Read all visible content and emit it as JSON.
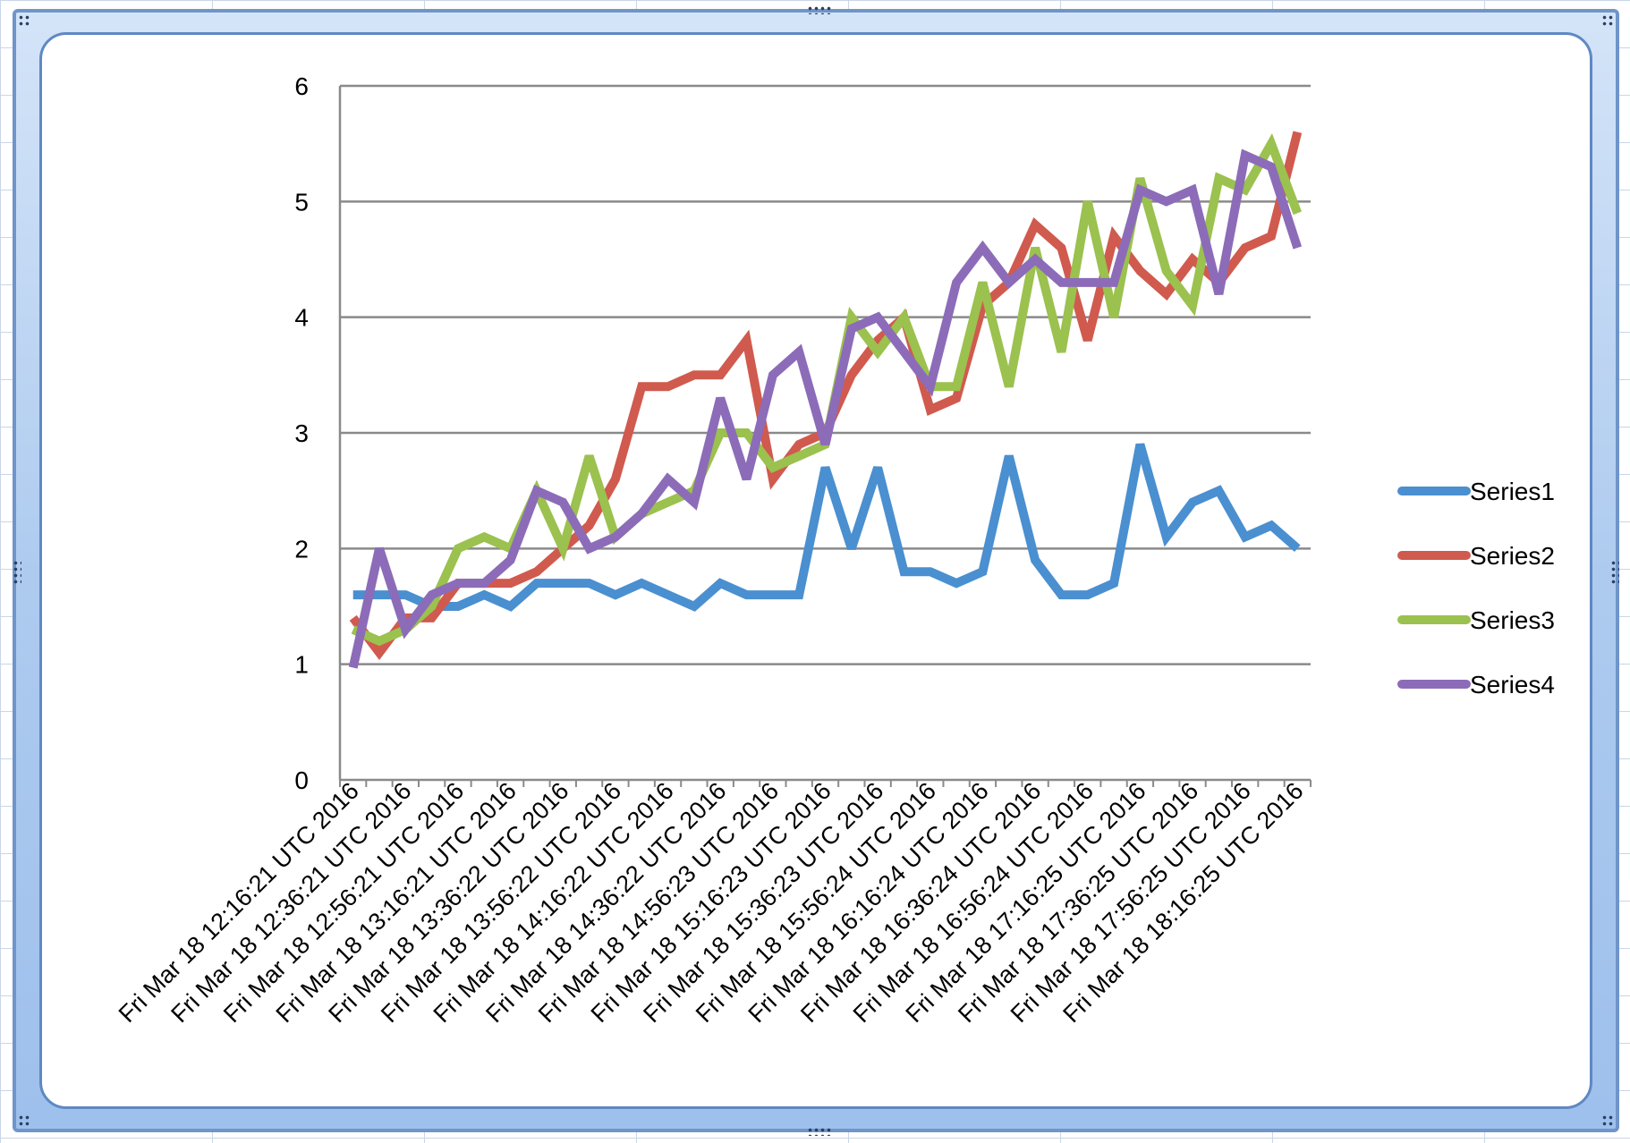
{
  "chart_data": {
    "type": "line",
    "title": "",
    "xlabel": "",
    "ylabel": "",
    "ylim": [
      0,
      6
    ],
    "y_ticks": [
      "0",
      "1",
      "2",
      "3",
      "4",
      "5",
      "6"
    ],
    "grid": "horizontal",
    "legend_position": "right",
    "x_tick_labels": [
      "Fri Mar 18 12:16:21 UTC 2016",
      "Fri Mar 18 12:36:21 UTC 2016",
      "Fri Mar 18 12:56:21 UTC 2016",
      "Fri Mar 18 13:16:21 UTC 2016",
      "Fri Mar 18 13:36:22 UTC 2016",
      "Fri Mar 18 13:56:22 UTC 2016",
      "Fri Mar 18 14:16:22 UTC 2016",
      "Fri Mar 18 14:36:22 UTC 2016",
      "Fri Mar 18 14:56:23 UTC 2016",
      "Fri Mar 18 15:16:23 UTC 2016",
      "Fri Mar 18 15:36:23 UTC 2016",
      "Fri Mar 18 15:56:24 UTC 2016",
      "Fri Mar 18 16:16:24 UTC 2016",
      "Fri Mar 18 16:36:24 UTC 2016",
      "Fri Mar 18 16:56:24 UTC 2016",
      "Fri Mar 18 17:16:25 UTC 2016",
      "Fri Mar 18 17:36:25 UTC 2016",
      "Fri Mar 18 17:56:25 UTC 2016",
      "Fri Mar 18 18:16:25 UTC 2016"
    ],
    "category_count": 37,
    "series": [
      {
        "name": "Series1",
        "color": "#4a8fd0",
        "values": [
          1.6,
          1.6,
          1.6,
          1.5,
          1.5,
          1.6,
          1.5,
          1.7,
          1.7,
          1.7,
          1.6,
          1.7,
          1.6,
          1.5,
          1.7,
          1.6,
          1.6,
          1.6,
          2.7,
          2.0,
          2.7,
          1.8,
          1.8,
          1.7,
          1.8,
          2.8,
          1.9,
          1.6,
          1.6,
          1.7,
          2.9,
          2.1,
          2.4,
          2.5,
          2.1,
          2.2,
          2.0
        ]
      },
      {
        "name": "Series2",
        "color": "#d05a4e",
        "values": [
          1.4,
          1.1,
          1.4,
          1.4,
          1.7,
          1.7,
          1.7,
          1.8,
          2.0,
          2.2,
          2.6,
          3.4,
          3.4,
          3.5,
          3.5,
          3.8,
          2.6,
          2.9,
          3.0,
          3.5,
          3.8,
          4.0,
          3.2,
          3.3,
          4.1,
          4.3,
          4.8,
          4.6,
          3.8,
          4.7,
          4.4,
          4.2,
          4.5,
          4.3,
          4.6,
          4.7,
          5.6
        ]
      },
      {
        "name": "Series3",
        "color": "#9bc14f",
        "values": [
          1.3,
          1.2,
          1.3,
          1.5,
          2.0,
          2.1,
          2.0,
          2.5,
          2.0,
          2.8,
          2.1,
          2.3,
          2.4,
          2.5,
          3.0,
          3.0,
          2.7,
          2.8,
          2.9,
          4.0,
          3.7,
          4.0,
          3.4,
          3.4,
          4.3,
          3.4,
          4.6,
          3.7,
          5.0,
          4.0,
          5.2,
          4.4,
          4.1,
          5.2,
          5.1,
          5.5,
          4.9
        ]
      },
      {
        "name": "Series4",
        "color": "#8c6cb8",
        "values": [
          0.97,
          2.0,
          1.3,
          1.6,
          1.7,
          1.7,
          1.9,
          2.5,
          2.4,
          2.0,
          2.1,
          2.3,
          2.6,
          2.4,
          3.3,
          2.6,
          3.5,
          3.7,
          2.9,
          3.9,
          4.0,
          3.7,
          3.4,
          4.3,
          4.6,
          4.3,
          4.5,
          4.3,
          4.3,
          4.3,
          5.1,
          5.0,
          5.1,
          4.2,
          5.4,
          5.3,
          4.6
        ]
      }
    ]
  }
}
